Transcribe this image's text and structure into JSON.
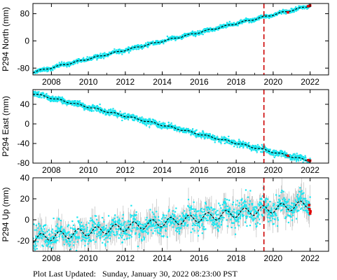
{
  "chart_data": [
    {
      "type": "scatter",
      "ylabel": "P294 North (mm)",
      "xlim": [
        2007.0,
        2023.0
      ],
      "ylim": [
        -100,
        110
      ],
      "yticks": [
        -80,
        0,
        80
      ],
      "xticks": [
        2008,
        2010,
        2012,
        2014,
        2016,
        2018,
        2020,
        2022
      ],
      "trend": {
        "x": [
          2007.0,
          2022.0
        ],
        "y": [
          -92,
          103
        ]
      },
      "noise_mm": 3,
      "seasonal_mm": 2,
      "error_mm": 3,
      "red_points": {
        "x": [
          2020.8,
          2021.9,
          2022.0
        ],
        "y": [
          84,
          102,
          104
        ]
      },
      "vline": 2019.5,
      "grid": false,
      "colors": {
        "points": "#18e6f0",
        "errors": "#a0a0a0",
        "trend": "#000000",
        "recent": "#e00000",
        "vline": "#cc0000"
      }
    },
    {
      "type": "scatter",
      "ylabel": "P294 East (mm)",
      "xlim": [
        2007.0,
        2023.0
      ],
      "ylim": [
        -80,
        70
      ],
      "yticks": [
        -80,
        -40,
        0,
        40
      ],
      "xticks": [
        2008,
        2010,
        2012,
        2014,
        2016,
        2018,
        2020,
        2022
      ],
      "trend": {
        "x": [
          2007.0,
          2022.0
        ],
        "y": [
          62,
          -76
        ]
      },
      "noise_mm": 3,
      "seasonal_mm": 1.5,
      "error_mm": 3,
      "red_points": {
        "x": [
          2020.8,
          2021.9,
          2022.0
        ],
        "y": [
          -65,
          -74,
          -75
        ]
      },
      "vline": 2019.5,
      "grid": false,
      "colors": {
        "points": "#18e6f0",
        "errors": "#a0a0a0",
        "trend": "#000000",
        "recent": "#e00000",
        "vline": "#cc0000"
      }
    },
    {
      "type": "scatter",
      "ylabel": "P294 Up (mm)",
      "xlim": [
        2007.0,
        2023.0
      ],
      "ylim": [
        -30,
        40
      ],
      "yticks": [
        -20,
        0,
        20,
        40
      ],
      "xticks": [
        2008,
        2010,
        2012,
        2014,
        2016,
        2018,
        2020,
        2022
      ],
      "trend": {
        "x": [
          2007.0,
          2022.0
        ],
        "y": [
          -18,
          15
        ]
      },
      "noise_mm": 6,
      "seasonal_mm": 4,
      "error_mm": 9,
      "red_points": {
        "x": [
          2021.95,
          2021.97,
          2022.0,
          2022.02
        ],
        "y": [
          14,
          10,
          6,
          8
        ]
      },
      "vline": 2019.5,
      "grid": false,
      "colors": {
        "points": "#18e6f0",
        "errors": "#a0a0a0",
        "trend": "#000000",
        "recent": "#e00000",
        "vline": "#cc0000"
      }
    }
  ],
  "footer": {
    "label": "Plot Last Updated:",
    "datetime": "Sunday, January 30, 2022 08:23:00 PST"
  }
}
